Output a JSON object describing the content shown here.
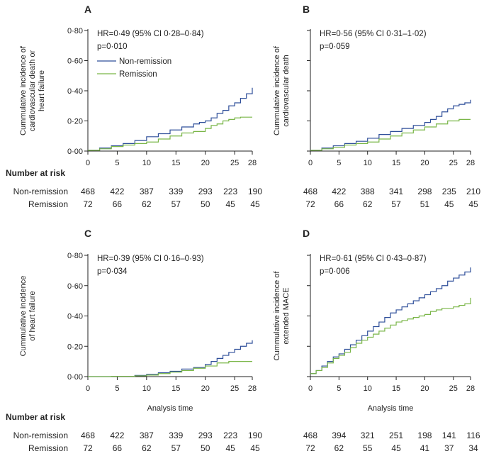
{
  "colors": {
    "non_remission": "#2f4f9a",
    "remission": "#7ab648",
    "axis": "#222222"
  },
  "risk_table": {
    "header": "Number at risk",
    "row_labels": [
      "Non-remission",
      "Remission"
    ]
  },
  "chart_data": [
    {
      "type": "line",
      "panel": "A",
      "title": "A",
      "ylabel": "Cummulative incidence of cardiovascular death or heart failure",
      "ylabel_lines": [
        "Cummulative incidence of",
        "cardiovascular death or",
        "heart failure"
      ],
      "xlabel": "",
      "xlim": [
        0,
        28
      ],
      "ylim": [
        0,
        0.8
      ],
      "xticks": [
        0,
        5,
        10,
        15,
        20,
        25,
        28
      ],
      "xtick_labels": [
        "0",
        "5",
        "10",
        "15",
        "20",
        "25",
        "28"
      ],
      "yticks": [
        0,
        0.2,
        0.4,
        0.6,
        0.8
      ],
      "ytick_labels": [
        "0·00",
        "0·20",
        "0·40",
        "0·60",
        "0·80"
      ],
      "annotations": [
        "HR=0·49 (95% CI 0·28–0·84)",
        "p=0·010"
      ],
      "legend": [
        "Non-remission",
        "Remission"
      ],
      "series": [
        {
          "name": "Non-remission",
          "x": [
            0,
            2,
            4,
            6,
            8,
            10,
            12,
            14,
            16,
            18,
            19,
            20,
            21,
            22,
            23,
            24,
            25,
            26,
            27,
            28
          ],
          "y": [
            0.005,
            0.02,
            0.035,
            0.05,
            0.07,
            0.095,
            0.115,
            0.14,
            0.16,
            0.18,
            0.19,
            0.2,
            0.22,
            0.25,
            0.27,
            0.3,
            0.32,
            0.35,
            0.38,
            0.42
          ]
        },
        {
          "name": "Remission",
          "x": [
            0,
            2,
            4,
            6,
            8,
            10,
            12,
            14,
            16,
            18,
            20,
            21,
            22,
            23,
            24,
            25,
            26,
            27,
            28
          ],
          "y": [
            0.005,
            0.015,
            0.03,
            0.04,
            0.05,
            0.06,
            0.08,
            0.1,
            0.12,
            0.13,
            0.15,
            0.17,
            0.18,
            0.2,
            0.21,
            0.22,
            0.225,
            0.225,
            0.225
          ]
        }
      ],
      "risk": {
        "times": [
          "0",
          "5",
          "10",
          "15",
          "20",
          "25",
          "28"
        ],
        "non_remission": [
          "468",
          "422",
          "387",
          "339",
          "293",
          "223",
          "190"
        ],
        "remission": [
          "72",
          "66",
          "62",
          "57",
          "50",
          "45",
          "45"
        ]
      }
    },
    {
      "type": "line",
      "panel": "B",
      "title": "B",
      "ylabel": "Cummulative incidence of cardiovascular death",
      "ylabel_lines": [
        "Cummulative incidence of",
        "cardiovascular death"
      ],
      "xlabel": "",
      "xlim": [
        0,
        28
      ],
      "ylim": [
        0,
        0.8
      ],
      "xticks": [
        0,
        5,
        10,
        15,
        20,
        25,
        28
      ],
      "xtick_labels": [
        "0",
        "5",
        "10",
        "15",
        "20",
        "25",
        "28"
      ],
      "yticks": [
        0,
        0.2,
        0.4,
        0.6,
        0.8
      ],
      "ytick_labels": [
        "",
        "",
        "",
        "",
        ""
      ],
      "annotations": [
        "HR=0·56 (95% CI 0·31–1·02)",
        "p=0·059"
      ],
      "legend": [],
      "series": [
        {
          "name": "Non-remission",
          "x": [
            0,
            2,
            4,
            6,
            8,
            10,
            12,
            14,
            16,
            18,
            20,
            21,
            22,
            23,
            24,
            25,
            26,
            27,
            28
          ],
          "y": [
            0.005,
            0.02,
            0.035,
            0.05,
            0.065,
            0.085,
            0.11,
            0.13,
            0.15,
            0.17,
            0.19,
            0.21,
            0.23,
            0.26,
            0.28,
            0.3,
            0.31,
            0.32,
            0.34
          ]
        },
        {
          "name": "Remission",
          "x": [
            0,
            2,
            4,
            6,
            8,
            10,
            12,
            14,
            16,
            18,
            20,
            22,
            24,
            26,
            28
          ],
          "y": [
            0.005,
            0.015,
            0.025,
            0.04,
            0.05,
            0.06,
            0.08,
            0.1,
            0.12,
            0.14,
            0.16,
            0.18,
            0.2,
            0.21,
            0.21
          ]
        }
      ],
      "risk": {
        "times": [
          "0",
          "5",
          "10",
          "15",
          "20",
          "25",
          "28"
        ],
        "non_remission": [
          "468",
          "422",
          "388",
          "341",
          "298",
          "235",
          "210"
        ],
        "remission": [
          "72",
          "66",
          "62",
          "57",
          "51",
          "45",
          "45"
        ]
      }
    },
    {
      "type": "line",
      "panel": "C",
      "title": "C",
      "ylabel": "Cummulative incidence of heart failure",
      "ylabel_lines": [
        "Cummulative incidence",
        "of heart failure"
      ],
      "xlabel": "Analysis time",
      "xlim": [
        0,
        28
      ],
      "ylim": [
        0,
        0.8
      ],
      "xticks": [
        0,
        5,
        10,
        15,
        20,
        25,
        28
      ],
      "xtick_labels": [
        "0",
        "5",
        "10",
        "15",
        "20",
        "25",
        "28"
      ],
      "yticks": [
        0,
        0.2,
        0.4,
        0.6,
        0.8
      ],
      "ytick_labels": [
        "0·00",
        "0·20",
        "0·40",
        "0·60",
        "0·80"
      ],
      "annotations": [
        "HR=0·39 (95% CI 0·16–0·93)",
        "p=0·034"
      ],
      "legend": [],
      "series": [
        {
          "name": "Non-remission",
          "x": [
            0,
            4,
            8,
            10,
            12,
            14,
            16,
            18,
            20,
            21,
            22,
            23,
            24,
            25,
            26,
            27,
            28
          ],
          "y": [
            0,
            0.002,
            0.008,
            0.015,
            0.025,
            0.035,
            0.05,
            0.06,
            0.08,
            0.1,
            0.12,
            0.14,
            0.16,
            0.18,
            0.2,
            0.22,
            0.24
          ]
        },
        {
          "name": "Remission",
          "x": [
            0,
            4,
            8,
            10,
            12,
            14,
            16,
            18,
            20,
            22,
            24,
            28
          ],
          "y": [
            0,
            0.002,
            0.005,
            0.01,
            0.02,
            0.03,
            0.04,
            0.055,
            0.07,
            0.09,
            0.1,
            0.1
          ]
        }
      ],
      "risk": {
        "times": [
          "0",
          "5",
          "10",
          "15",
          "20",
          "25",
          "28"
        ],
        "non_remission": [
          "468",
          "422",
          "387",
          "339",
          "293",
          "223",
          "190"
        ],
        "remission": [
          "72",
          "66",
          "62",
          "57",
          "50",
          "45",
          "45"
        ]
      }
    },
    {
      "type": "line",
      "panel": "D",
      "title": "D",
      "ylabel": "Cummulative incidence of extended MACE",
      "ylabel_lines": [
        "Cummulative incidence of",
        "extended MACE"
      ],
      "xlabel": "Analysis time",
      "xlim": [
        0,
        28
      ],
      "ylim": [
        0,
        0.8
      ],
      "xticks": [
        0,
        5,
        10,
        15,
        20,
        25,
        28
      ],
      "xtick_labels": [
        "0",
        "5",
        "10",
        "15",
        "20",
        "25",
        "28"
      ],
      "yticks": [
        0,
        0.2,
        0.4,
        0.6,
        0.8
      ],
      "ytick_labels": [
        "",
        "",
        "",
        "",
        ""
      ],
      "annotations": [
        "HR=0·61 (95% CI 0·43–0·87)",
        "p=0·006"
      ],
      "legend": [],
      "series": [
        {
          "name": "Non-remission",
          "x": [
            0,
            1,
            2,
            3,
            4,
            5,
            6,
            7,
            8,
            9,
            10,
            11,
            12,
            13,
            14,
            15,
            16,
            17,
            18,
            19,
            20,
            21,
            22,
            23,
            24,
            25,
            26,
            27,
            28
          ],
          "y": [
            0.02,
            0.04,
            0.07,
            0.1,
            0.13,
            0.15,
            0.18,
            0.21,
            0.24,
            0.27,
            0.3,
            0.33,
            0.36,
            0.39,
            0.42,
            0.44,
            0.46,
            0.48,
            0.5,
            0.52,
            0.54,
            0.56,
            0.58,
            0.6,
            0.63,
            0.65,
            0.67,
            0.69,
            0.72
          ]
        },
        {
          "name": "Remission",
          "x": [
            0,
            1,
            2,
            3,
            4,
            5,
            6,
            7,
            8,
            9,
            10,
            11,
            12,
            13,
            14,
            15,
            16,
            17,
            18,
            19,
            20,
            21,
            22,
            23,
            24,
            25,
            26,
            27,
            28
          ],
          "y": [
            0.02,
            0.04,
            0.06,
            0.09,
            0.12,
            0.14,
            0.16,
            0.19,
            0.22,
            0.24,
            0.26,
            0.28,
            0.3,
            0.32,
            0.34,
            0.36,
            0.37,
            0.38,
            0.39,
            0.4,
            0.41,
            0.43,
            0.44,
            0.45,
            0.45,
            0.46,
            0.47,
            0.48,
            0.52
          ]
        }
      ],
      "risk": {
        "times": [
          "0",
          "5",
          "10",
          "15",
          "20",
          "25",
          "28"
        ],
        "non_remission": [
          "468",
          "394",
          "321",
          "251",
          "198",
          "141",
          "116"
        ],
        "remission": [
          "72",
          "62",
          "55",
          "45",
          "41",
          "37",
          "34"
        ]
      }
    }
  ]
}
